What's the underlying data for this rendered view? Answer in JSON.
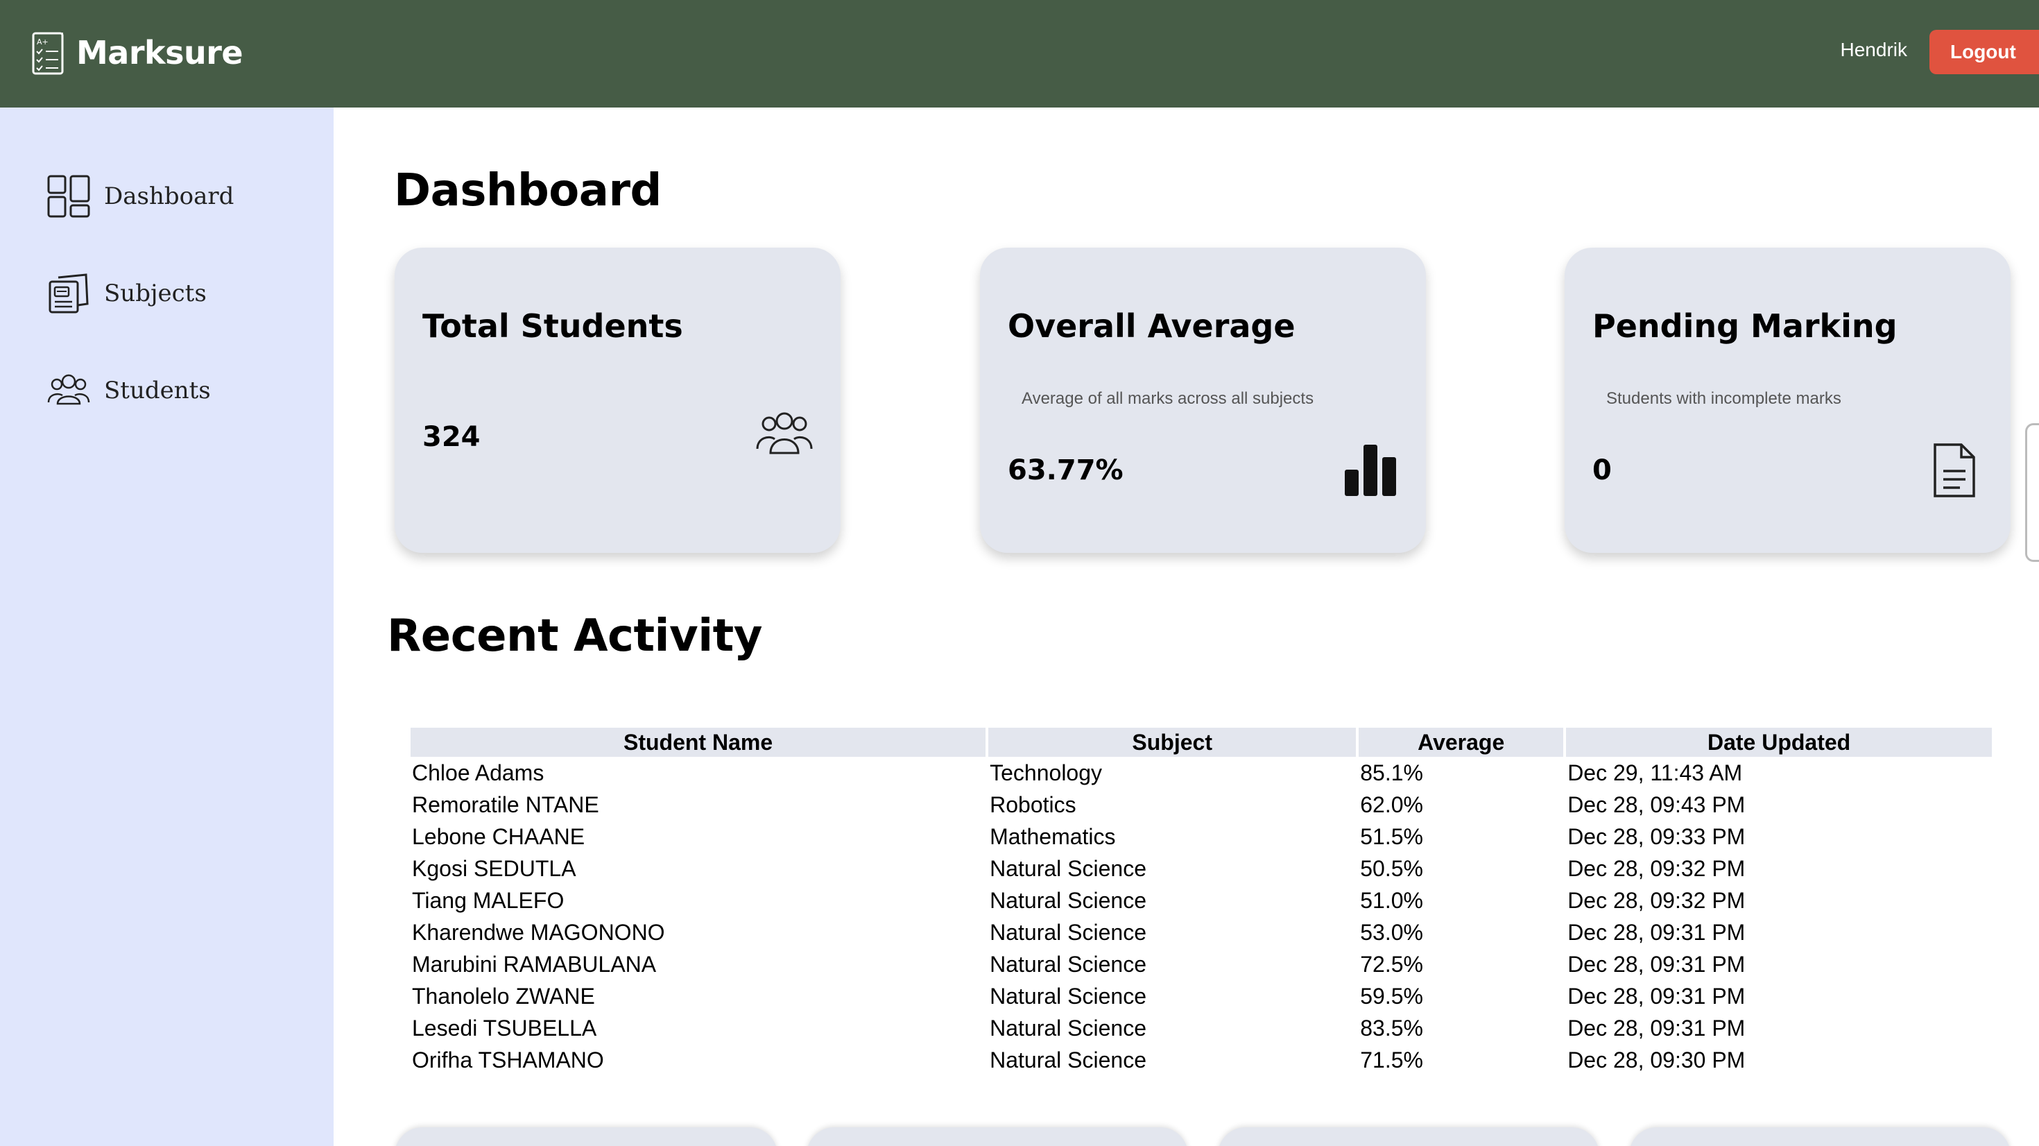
{
  "app": {
    "name": "Marksure",
    "user": "Hendrik",
    "logout_label": "Logout"
  },
  "sidebar": {
    "items": [
      {
        "label": "Dashboard",
        "icon": "dashboard-icon"
      },
      {
        "label": "Subjects",
        "icon": "subjects-icon"
      },
      {
        "label": "Students",
        "icon": "students-icon"
      }
    ]
  },
  "main": {
    "title": "Dashboard",
    "cards": [
      {
        "title": "Total Students",
        "subtitle": "",
        "value": "324",
        "icon": "users-icon"
      },
      {
        "title": "Overall Average",
        "subtitle": "Average of all marks across all subjects",
        "value": "63.77%",
        "icon": "bar-chart-icon"
      },
      {
        "title": "Pending Marking",
        "subtitle": "Students with incomplete marks",
        "value": "0",
        "icon": "document-icon"
      }
    ],
    "recent_activity": {
      "title": "Recent Activity",
      "columns": [
        "Student Name",
        "Subject",
        "Average",
        "Date Updated"
      ],
      "rows": [
        [
          "Chloe Adams",
          "Technology",
          "85.1%",
          "Dec 29, 11:43 AM"
        ],
        [
          "Remoratile NTANE",
          "Robotics",
          "62.0%",
          "Dec 28, 09:43 PM"
        ],
        [
          "Lebone CHAANE",
          "Mathematics",
          "51.5%",
          "Dec 28, 09:33 PM"
        ],
        [
          "Kgosi SEDUTLA",
          "Natural Science",
          "50.5%",
          "Dec 28, 09:32 PM"
        ],
        [
          "Tiang MALEFO",
          "Natural Science",
          "51.0%",
          "Dec 28, 09:32 PM"
        ],
        [
          "Kharendwe MAGONONO",
          "Natural Science",
          "53.0%",
          "Dec 28, 09:31 PM"
        ],
        [
          "Marubini RAMABULANA",
          "Natural Science",
          "72.5%",
          "Dec 28, 09:31 PM"
        ],
        [
          "Thanolelo ZWANE",
          "Natural Science",
          "59.5%",
          "Dec 28, 09:31 PM"
        ],
        [
          "Lesedi TSUBELLA",
          "Natural Science",
          "83.5%",
          "Dec 28, 09:31 PM"
        ],
        [
          "Orifha TSHAMANO",
          "Natural Science",
          "71.5%",
          "Dec 28, 09:30 PM"
        ]
      ]
    }
  },
  "colors": {
    "header": "#465c46",
    "sidebar": "#e0e6fc",
    "card": "#e3e6ee",
    "logout": "#e0533f"
  }
}
